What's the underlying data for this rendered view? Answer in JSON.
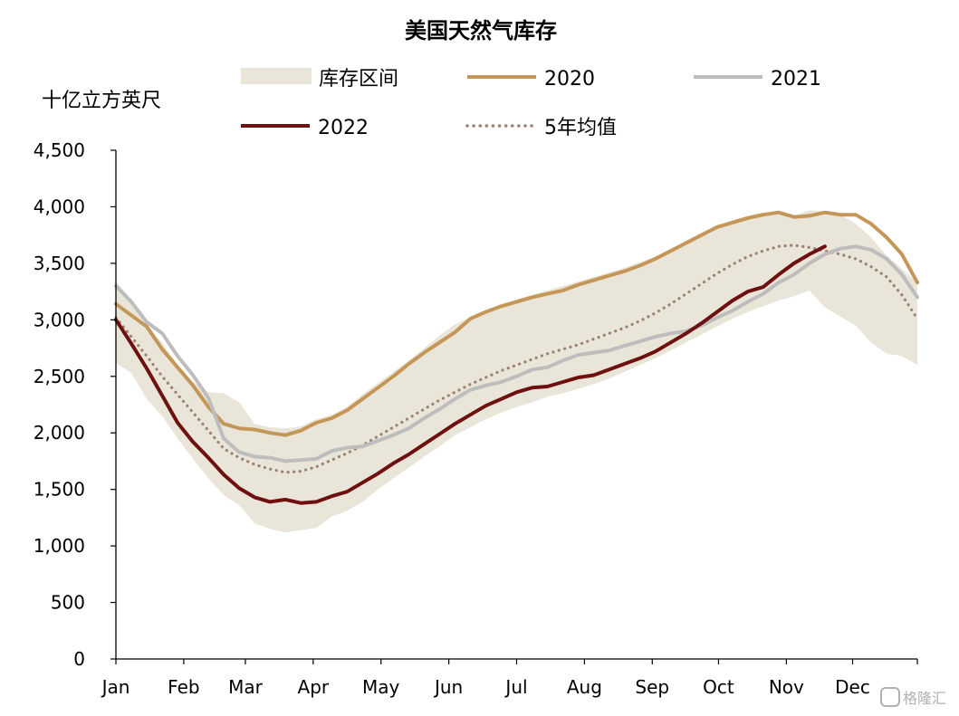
{
  "chart_data": {
    "type": "line",
    "title": "美国天然气库存",
    "ylabel": "十亿立方英尺",
    "ylim": [
      0,
      4500
    ],
    "yticks": [
      0,
      500,
      1000,
      1500,
      2000,
      2500,
      3000,
      3500,
      4000,
      4500
    ],
    "ytick_labels": [
      "0",
      "500",
      "1,000",
      "1,500",
      "2,000",
      "2,500",
      "3,000",
      "3,500",
      "4,000",
      "4,500"
    ],
    "x_unit": "week",
    "xlim": [
      0,
      52
    ],
    "months": [
      "Jan",
      "Feb",
      "Mar",
      "Apr",
      "May",
      "Jun",
      "Jul",
      "Aug",
      "Sep",
      "Oct",
      "Nov",
      "Dec"
    ],
    "month_week": [
      0,
      4.4,
      8.4,
      12.8,
      17.2,
      21.6,
      26.0,
      30.4,
      34.8,
      39.1,
      43.5,
      47.8
    ],
    "grid": false,
    "legend": {
      "position": "top"
    },
    "range": {
      "name": "库存区间",
      "color": "#e9e5d8",
      "x": [
        0,
        1,
        2,
        3,
        4,
        5,
        6,
        7,
        8,
        9,
        10,
        11,
        12,
        13,
        14,
        15,
        16,
        17,
        18,
        19,
        20,
        21,
        22,
        23,
        24,
        25,
        26,
        27,
        28,
        29,
        30,
        31,
        32,
        33,
        34,
        35,
        36,
        37,
        38,
        39,
        40,
        41,
        42,
        43,
        44,
        45,
        46,
        47,
        48,
        49,
        50,
        51,
        52
      ],
      "upper": [
        3340,
        3180,
        2940,
        2800,
        2600,
        2450,
        2360,
        2350,
        2270,
        2080,
        2050,
        2040,
        2060,
        2120,
        2160,
        2230,
        2340,
        2440,
        2540,
        2640,
        2750,
        2860,
        2960,
        3020,
        3070,
        3130,
        3180,
        3220,
        3260,
        3300,
        3340,
        3380,
        3420,
        3460,
        3510,
        3560,
        3620,
        3700,
        3770,
        3830,
        3880,
        3920,
        3950,
        3930,
        3920,
        3970,
        3960,
        3930,
        3850,
        3730,
        3570,
        3450,
        3330
      ],
      "lower": [
        2620,
        2530,
        2300,
        2150,
        1950,
        1770,
        1600,
        1450,
        1360,
        1200,
        1150,
        1120,
        1140,
        1160,
        1260,
        1310,
        1390,
        1500,
        1600,
        1690,
        1790,
        1880,
        1980,
        2050,
        2120,
        2180,
        2230,
        2270,
        2320,
        2350,
        2390,
        2430,
        2480,
        2540,
        2600,
        2660,
        2730,
        2800,
        2870,
        2940,
        3010,
        3070,
        3120,
        3170,
        3210,
        3260,
        3110,
        3030,
        2950,
        2800,
        2700,
        2680,
        2600
      ]
    },
    "series": [
      {
        "name": "2020",
        "color": "#c49658",
        "style": "solid",
        "x": [
          0,
          1,
          2,
          3,
          4,
          5,
          6,
          7,
          8,
          9,
          10,
          11,
          12,
          13,
          14,
          15,
          16,
          17,
          18,
          19,
          20,
          21,
          22,
          23,
          24,
          25,
          26,
          27,
          28,
          29,
          30,
          31,
          32,
          33,
          34,
          35,
          36,
          37,
          38,
          39,
          40,
          41,
          42,
          43,
          44,
          45,
          46,
          47,
          48,
          49,
          50,
          51,
          52
        ],
        "values": [
          3140,
          3040,
          2940,
          2740,
          2580,
          2420,
          2230,
          2080,
          2040,
          2030,
          2000,
          1980,
          2020,
          2090,
          2130,
          2200,
          2300,
          2400,
          2500,
          2610,
          2710,
          2800,
          2890,
          3010,
          3070,
          3120,
          3160,
          3200,
          3230,
          3260,
          3310,
          3350,
          3390,
          3430,
          3480,
          3540,
          3610,
          3680,
          3750,
          3820,
          3860,
          3900,
          3930,
          3950,
          3910,
          3920,
          3950,
          3930,
          3930,
          3850,
          3730,
          3580,
          3330
        ]
      },
      {
        "name": "2021",
        "color": "#bdbdbd",
        "style": "solid",
        "x": [
          0,
          1,
          2,
          3,
          4,
          5,
          6,
          7,
          8,
          9,
          10,
          11,
          12,
          13,
          14,
          15,
          16,
          17,
          18,
          19,
          20,
          21,
          22,
          23,
          24,
          25,
          26,
          27,
          28,
          29,
          30,
          31,
          32,
          33,
          34,
          35,
          36,
          37,
          38,
          39,
          40,
          41,
          42,
          43,
          44,
          45,
          46,
          47,
          48,
          49,
          50,
          51,
          52
        ],
        "values": [
          3300,
          3160,
          2980,
          2880,
          2680,
          2510,
          2310,
          1950,
          1830,
          1790,
          1780,
          1750,
          1760,
          1770,
          1840,
          1870,
          1880,
          1930,
          1980,
          2040,
          2130,
          2210,
          2300,
          2380,
          2420,
          2450,
          2500,
          2560,
          2580,
          2640,
          2690,
          2710,
          2730,
          2770,
          2810,
          2850,
          2880,
          2900,
          2950,
          3020,
          3080,
          3160,
          3230,
          3330,
          3400,
          3500,
          3580,
          3630,
          3650,
          3620,
          3540,
          3400,
          3200
        ]
      },
      {
        "name": "2022",
        "color": "#6e0f10",
        "style": "solid",
        "x": [
          0,
          1,
          2,
          3,
          4,
          5,
          6,
          7,
          8,
          9,
          10,
          11,
          12,
          13,
          14,
          15,
          16,
          17,
          18,
          19,
          20,
          21,
          22,
          23,
          24,
          25,
          26,
          27,
          28,
          29,
          30,
          31,
          32,
          33,
          34,
          35,
          36,
          37,
          38,
          39,
          40,
          41,
          42,
          43,
          44,
          45,
          46
        ],
        "values": [
          3000,
          2790,
          2570,
          2330,
          2090,
          1920,
          1780,
          1630,
          1510,
          1430,
          1390,
          1410,
          1380,
          1390,
          1440,
          1480,
          1560,
          1640,
          1730,
          1810,
          1900,
          1990,
          2080,
          2160,
          2240,
          2300,
          2360,
          2400,
          2410,
          2450,
          2490,
          2510,
          2560,
          2610,
          2660,
          2720,
          2800,
          2880,
          2970,
          3070,
          3170,
          3250,
          3290,
          3400,
          3500,
          3580,
          3650
        ]
      },
      {
        "name": "5年均值",
        "color": "#9c8270",
        "style": "dotted",
        "x": [
          0,
          1,
          2,
          3,
          4,
          5,
          6,
          7,
          8,
          9,
          10,
          11,
          12,
          13,
          14,
          15,
          16,
          17,
          18,
          19,
          20,
          21,
          22,
          23,
          24,
          25,
          26,
          27,
          28,
          29,
          30,
          31,
          32,
          33,
          34,
          35,
          36,
          37,
          38,
          39,
          40,
          41,
          42,
          43,
          44,
          45,
          46,
          47,
          48,
          49,
          50,
          51,
          52
        ],
        "values": [
          3020,
          2850,
          2680,
          2500,
          2340,
          2180,
          2020,
          1860,
          1780,
          1720,
          1680,
          1650,
          1660,
          1700,
          1760,
          1820,
          1890,
          1970,
          2050,
          2130,
          2210,
          2290,
          2360,
          2430,
          2490,
          2550,
          2600,
          2650,
          2700,
          2740,
          2780,
          2830,
          2880,
          2930,
          2990,
          3060,
          3140,
          3230,
          3320,
          3410,
          3490,
          3560,
          3610,
          3650,
          3660,
          3640,
          3610,
          3580,
          3540,
          3470,
          3380,
          3220,
          3010
        ]
      }
    ]
  },
  "watermark": {
    "text": "格隆汇",
    "icon": "glh-logo-icon"
  }
}
